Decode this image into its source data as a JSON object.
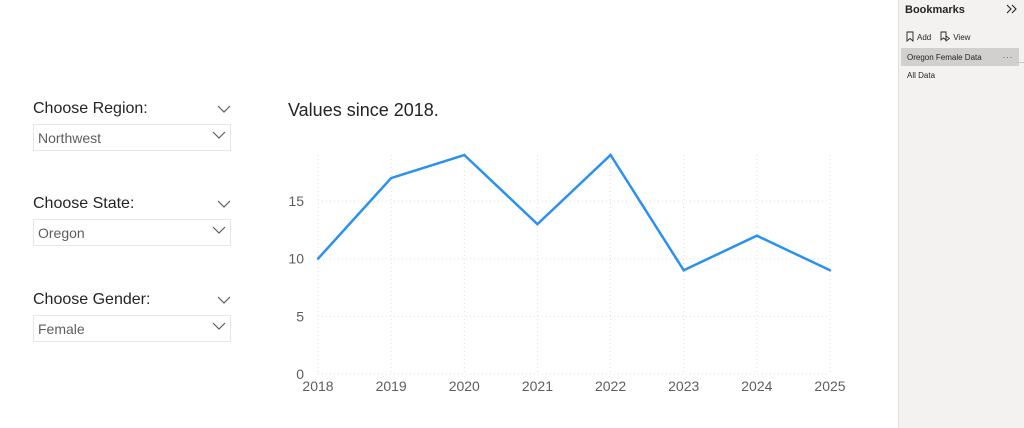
{
  "slicers": {
    "region": {
      "title": "Choose Region:",
      "value": "Northwest"
    },
    "state": {
      "title": "Choose State:",
      "value": "Oregon"
    },
    "gender": {
      "title": "Choose Gender:",
      "value": "Female"
    }
  },
  "bookmarks": {
    "title": "Bookmarks",
    "collapse_icon": "double-chevron-right-icon",
    "add_label": "Add",
    "view_label": "View",
    "items": [
      {
        "label": "Oregon Female Data",
        "selected": true,
        "more": "···"
      },
      {
        "label": "All Data",
        "selected": false
      }
    ]
  },
  "colors": {
    "line": "#2b91f0",
    "gridline": "#e0e0e0",
    "pane_bg": "#f3f2f1",
    "selected_bg": "#d2d0ce"
  },
  "chart_data": {
    "type": "line",
    "title": "Values since 2018.",
    "x": [
      "2018",
      "2019",
      "2020",
      "2021",
      "2022",
      "2023",
      "2024",
      "2025"
    ],
    "values": [
      10,
      17,
      19,
      13,
      19,
      9,
      12,
      9
    ],
    "y_ticks": [
      0,
      5,
      10,
      15
    ],
    "ylim": [
      0,
      19
    ],
    "grid": true
  }
}
